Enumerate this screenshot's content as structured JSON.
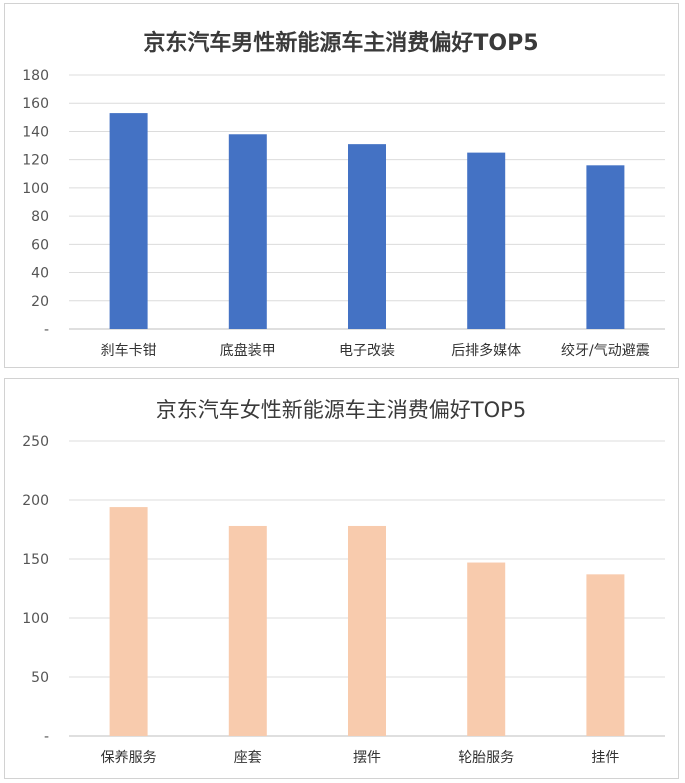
{
  "chart_data": [
    {
      "type": "bar",
      "title": "京东汽车男性新能源车主消费偏好TOP5",
      "categories": [
        "刹车卡钳",
        "底盘装甲",
        "电子改装",
        "后排多媒体",
        "绞牙/气动避震"
      ],
      "values": [
        153,
        138,
        131,
        125,
        116
      ],
      "ylim": [
        0,
        180
      ],
      "yticks": [
        "-",
        "20",
        "40",
        "60",
        "80",
        "100",
        "120",
        "140",
        "160",
        "180"
      ],
      "grid": true,
      "color": "#4472C4"
    },
    {
      "type": "bar",
      "title": "京东汽车女性新能源车主消费偏好TOP5",
      "categories": [
        "保养服务",
        "座套",
        "摆件",
        "轮胎服务",
        "挂件"
      ],
      "values": [
        194,
        178,
        178,
        147,
        137
      ],
      "ylim": [
        0,
        250
      ],
      "yticks": [
        "-",
        "50",
        "100",
        "150",
        "200",
        "250"
      ],
      "grid": true,
      "color": "#F8CBAD"
    }
  ]
}
